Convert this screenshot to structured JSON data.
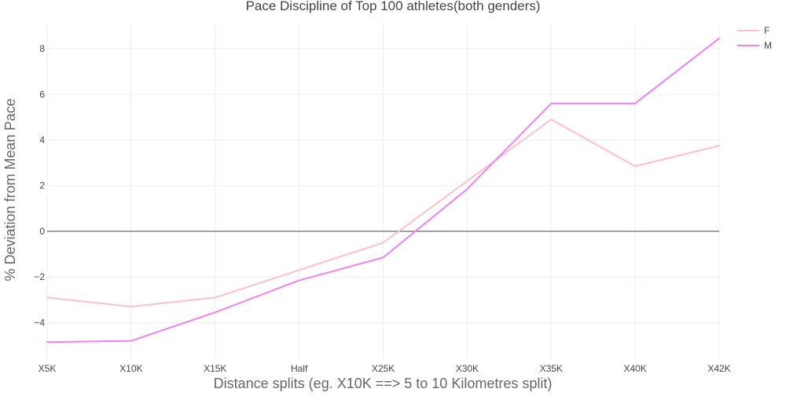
{
  "chart_data": {
    "type": "line",
    "title": "Pace Discipline of Top 100 athletes(both genders)",
    "xlabel": "Distance splits (eg. X10K ==> 5 to 10 Kilometres split)",
    "ylabel": "% Deviation from Mean Pace",
    "categories": [
      "X5K",
      "X10K",
      "X15K",
      "Half",
      "X25K",
      "X30K",
      "X35K",
      "X40K",
      "X42K"
    ],
    "ylim": [
      -5.6,
      9.1
    ],
    "yticks": [
      8,
      6,
      4,
      2,
      0,
      -2,
      -4
    ],
    "ytick_labels": [
      "8",
      "6",
      "4",
      "2",
      "0",
      "−2",
      "−4"
    ],
    "grid": true,
    "zero_line": true,
    "legend_position": "top-right",
    "series": [
      {
        "name": "F",
        "color": "#ffc0cb",
        "values": [
          -2.9,
          -3.3,
          -2.9,
          -1.7,
          -0.5,
          2.2,
          4.9,
          2.85,
          3.75
        ]
      },
      {
        "name": "M",
        "color": "#ee82ee",
        "values": [
          -4.85,
          -4.8,
          -3.55,
          -2.15,
          -1.15,
          1.85,
          5.6,
          5.6,
          8.45
        ]
      }
    ]
  }
}
